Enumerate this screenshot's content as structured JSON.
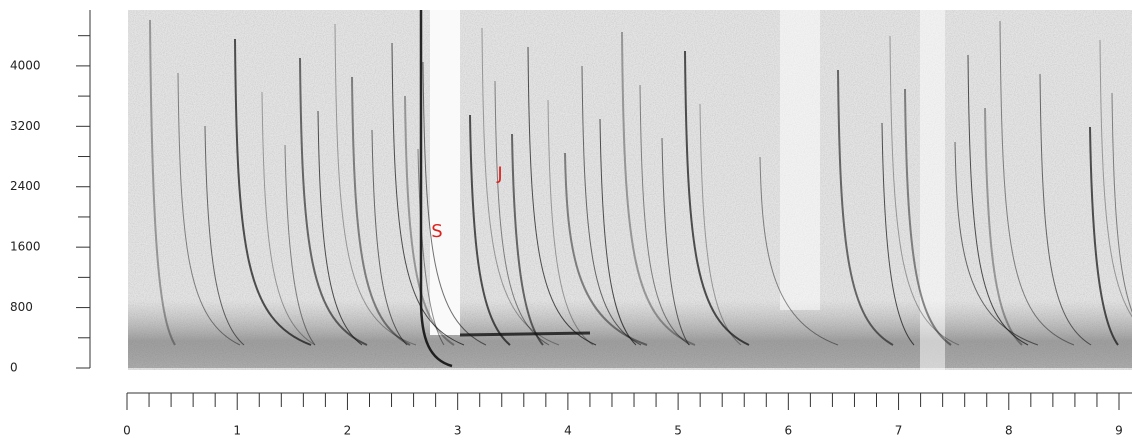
{
  "chart_data": {
    "type": "spectrogram",
    "xlim": [
      0,
      9.12
    ],
    "ylim": [
      0,
      4740
    ],
    "xticks": [
      0,
      1,
      2,
      3,
      4,
      5,
      6,
      7,
      8,
      9
    ],
    "xminorticks": [
      0.2,
      0.4,
      0.6,
      0.8,
      1.2,
      1.4,
      1.6,
      1.8,
      2.2,
      2.4,
      2.6,
      2.8,
      3.2,
      3.4,
      3.6,
      3.8,
      4.2,
      4.4,
      4.6,
      4.8,
      5.2,
      5.4,
      5.6,
      5.8,
      6.2,
      6.4,
      6.6,
      6.8,
      7.2,
      7.4,
      7.6,
      7.8,
      8.2,
      8.4,
      8.6,
      8.8
    ],
    "yticks": [
      0,
      800,
      1600,
      2400,
      3200,
      4000
    ],
    "yminorticks": [
      400,
      1200,
      2000,
      2800,
      3600,
      4400
    ],
    "annotations": [
      {
        "text": "S",
        "x": 2.76,
        "y": 1800,
        "color": "#e0201c"
      },
      {
        "text": "J",
        "x": 3.36,
        "y": 2560,
        "color": "#e0201c"
      }
    ]
  }
}
